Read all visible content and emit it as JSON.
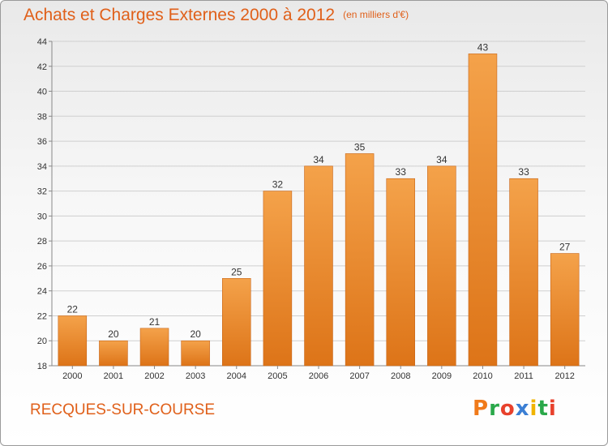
{
  "chart_data": {
    "type": "bar",
    "title": "Achats et Charges Externes 2000 à 2012",
    "subtitle": "(en milliers d'€)",
    "categories": [
      "2000",
      "2001",
      "2002",
      "2003",
      "2004",
      "2005",
      "2006",
      "2007",
      "2008",
      "2009",
      "2010",
      "2011",
      "2012"
    ],
    "values": [
      22,
      20,
      21,
      20,
      25,
      32,
      34,
      35,
      33,
      34,
      43,
      33,
      27
    ],
    "ylim": [
      18,
      44
    ],
    "yticks": [
      18,
      20,
      22,
      24,
      26,
      28,
      30,
      32,
      34,
      36,
      38,
      40,
      42,
      44
    ],
    "grid": true,
    "bar_color": "#f0922e"
  },
  "footer": {
    "place": "RECQUES-SUR-COURSE",
    "logo": "Proxiti",
    "logo_colors": [
      "#f07a1a",
      "#2aa84a",
      "#e8412c",
      "#3b7fd4",
      "#f0b400",
      "#2aa84a",
      "#e8412c"
    ]
  }
}
